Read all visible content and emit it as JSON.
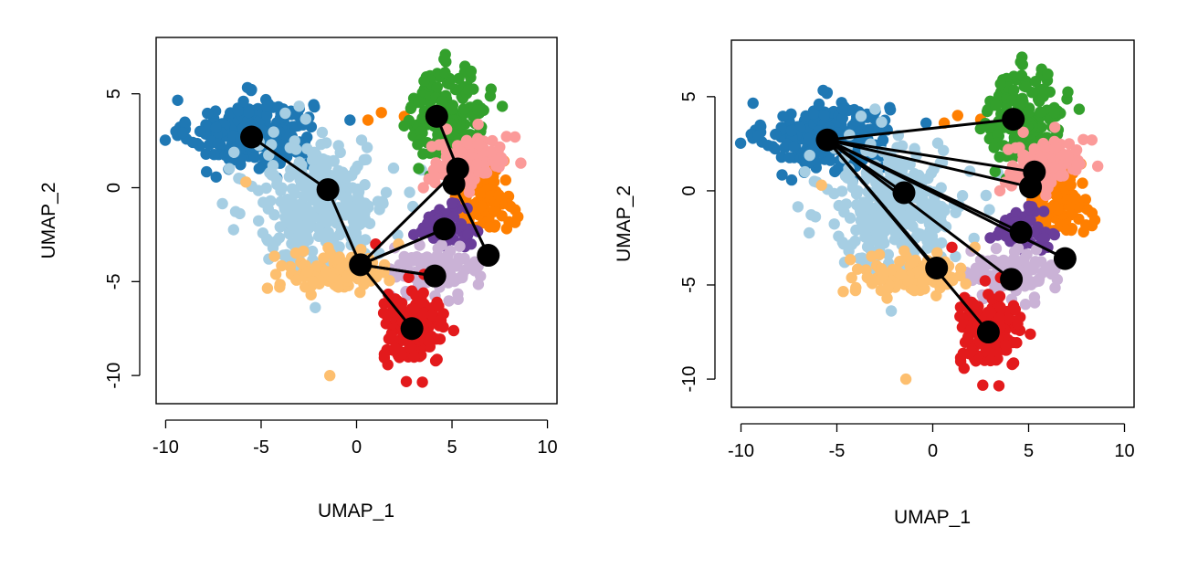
{
  "colors": {
    "dark_blue": "#1f78b4",
    "light_blue": "#a6cee3",
    "orange": "#ff7f00",
    "green": "#33a02c",
    "pink": "#fb9a99",
    "purple": "#6a3d9a",
    "lavender": "#cab2d6",
    "tan": "#fdbf6f",
    "red": "#e31a1c",
    "node": "#000000",
    "edge": "#000000"
  },
  "chart_data": [
    {
      "type": "scatter",
      "title": "",
      "xlabel": "UMAP_1",
      "ylabel": "UMAP_2",
      "xlim": [
        -10.5,
        10.5
      ],
      "ylim": [
        -11.5,
        8.0
      ],
      "xticks": [
        -10,
        -5,
        0,
        5,
        10
      ],
      "yticks": [
        -10,
        -5,
        0,
        5
      ],
      "xtick_labels": [
        "-10",
        "-5",
        "0",
        "5",
        "10"
      ],
      "ytick_labels": [
        "-10",
        "-5",
        "0",
        "5"
      ],
      "grid": false,
      "trajectory_nodes": [
        {
          "x": -5.5,
          "y": 2.7
        },
        {
          "x": -1.5,
          "y": -0.1
        },
        {
          "x": 0.2,
          "y": -4.1
        },
        {
          "x": 2.9,
          "y": -7.5
        },
        {
          "x": 4.1,
          "y": -4.7
        },
        {
          "x": 4.6,
          "y": -2.2
        },
        {
          "x": 6.9,
          "y": -3.6
        },
        {
          "x": 5.1,
          "y": 0.2
        },
        {
          "x": 5.3,
          "y": 1.0
        },
        {
          "x": 4.2,
          "y": 3.8
        }
      ],
      "trajectory_edges": [
        [
          0,
          1
        ],
        [
          1,
          2
        ],
        [
          2,
          3
        ],
        [
          2,
          4
        ],
        [
          2,
          5
        ],
        [
          5,
          2
        ],
        [
          4,
          2
        ],
        [
          7,
          6
        ],
        [
          8,
          7
        ],
        [
          9,
          8
        ],
        [
          2,
          8
        ]
      ]
    },
    {
      "type": "scatter",
      "title": "",
      "xlabel": "UMAP_1",
      "ylabel": "UMAP_2",
      "xlim": [
        -10.5,
        10.5
      ],
      "ylim": [
        -11.5,
        8.0
      ],
      "xticks": [
        -10,
        -5,
        0,
        5,
        10
      ],
      "yticks": [
        -10,
        -5,
        0,
        5
      ],
      "xtick_labels": [
        "-10",
        "-5",
        "0",
        "5",
        "10"
      ],
      "ytick_labels": [
        "-10",
        "-5",
        "0",
        "5"
      ],
      "grid": false,
      "trajectory_nodes": [
        {
          "x": -5.5,
          "y": 2.7
        },
        {
          "x": -1.5,
          "y": -0.1
        },
        {
          "x": 0.2,
          "y": -4.1
        },
        {
          "x": 2.9,
          "y": -7.5
        },
        {
          "x": 4.1,
          "y": -4.7
        },
        {
          "x": 4.6,
          "y": -2.2
        },
        {
          "x": 6.9,
          "y": -3.6
        },
        {
          "x": 5.1,
          "y": 0.2
        },
        {
          "x": 5.3,
          "y": 1.0
        },
        {
          "x": 4.2,
          "y": 3.8
        }
      ],
      "trajectory_edges": [
        [
          0,
          1
        ],
        [
          0,
          2
        ],
        [
          0,
          3
        ],
        [
          0,
          4
        ],
        [
          0,
          5
        ],
        [
          0,
          6
        ],
        [
          0,
          7
        ],
        [
          0,
          8
        ],
        [
          0,
          9
        ]
      ]
    }
  ],
  "clusters": [
    {
      "name": "dark_blue",
      "cx": -5.5,
      "cy": 2.9,
      "sx": 1.6,
      "sy": 0.9,
      "n": 260,
      "extra": [
        [
          -8.2,
          3.0
        ],
        [
          -3.0,
          4.2
        ],
        [
          -4.5,
          1.5
        ]
      ]
    },
    {
      "name": "light_blue",
      "cx": -1.8,
      "cy": -0.8,
      "sx": 1.8,
      "sy": 1.7,
      "n": 320,
      "extra": [
        [
          -3.5,
          -1.5
        ],
        [
          0.5,
          1.5
        ],
        [
          -1.0,
          -3.5
        ]
      ]
    },
    {
      "name": "orange",
      "cx": 6.6,
      "cy": -0.6,
      "sx": 0.8,
      "sy": 0.8,
      "n": 90,
      "extra": [
        [
          1.3,
          4.0
        ],
        [
          2.5,
          3.8
        ],
        [
          0.6,
          3.6
        ]
      ]
    },
    {
      "name": "green",
      "cx": 4.8,
      "cy": 4.0,
      "sx": 1.0,
      "sy": 1.2,
      "n": 170,
      "extra": [
        [
          6.0,
          6.2
        ],
        [
          3.2,
          2.3
        ]
      ]
    },
    {
      "name": "pink",
      "cx": 6.0,
      "cy": 1.4,
      "sx": 1.0,
      "sy": 0.7,
      "n": 120,
      "extra": [
        [
          3.5,
          0.0
        ],
        [
          8.3,
          2.7
        ]
      ]
    },
    {
      "name": "purple",
      "cx": 4.6,
      "cy": -2.0,
      "sx": 0.6,
      "sy": 0.5,
      "n": 60,
      "extra": [
        [
          6.0,
          -3.0
        ],
        [
          3.0,
          -2.5
        ]
      ]
    },
    {
      "name": "lavender",
      "cx": 4.2,
      "cy": -4.4,
      "sx": 1.1,
      "sy": 0.6,
      "n": 110,
      "extra": [
        [
          2.0,
          -3.2
        ]
      ]
    },
    {
      "name": "tan",
      "cx": -1.2,
      "cy": -4.5,
      "sx": 1.4,
      "sy": 0.5,
      "n": 110,
      "extra": [
        [
          -1.4,
          -10.0
        ],
        [
          -5.8,
          0.3
        ],
        [
          2.2,
          -3.0
        ]
      ]
    },
    {
      "name": "red",
      "cx": 3.0,
      "cy": -7.6,
      "sx": 0.8,
      "sy": 0.9,
      "n": 160,
      "extra": [
        [
          1.0,
          -3.0
        ],
        [
          3.5,
          -5.6
        ]
      ]
    }
  ]
}
